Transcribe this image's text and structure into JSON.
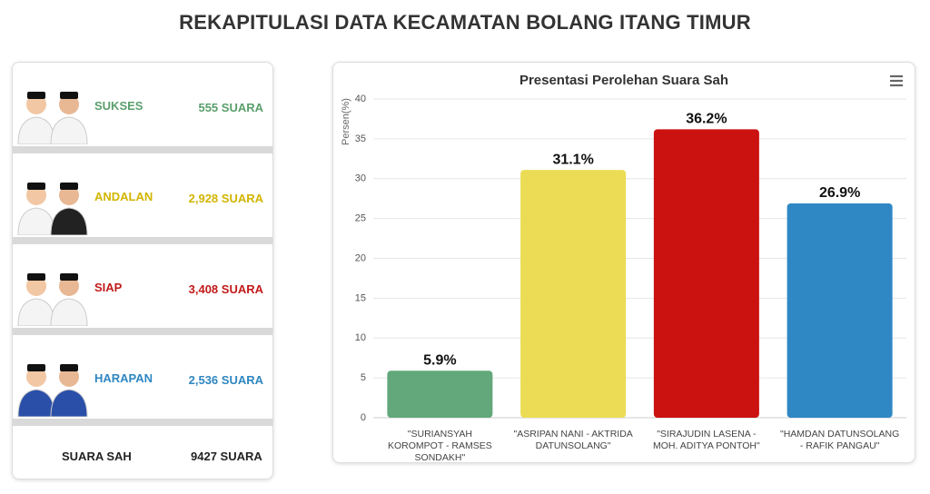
{
  "header": {
    "title": "REKAPITULASI DATA KECAMATAN BOLANG ITANG TIMUR"
  },
  "candidates": [
    {
      "name": "SUKSES",
      "votes": "555 SUARA",
      "color": "#5a9f6c"
    },
    {
      "name": "ANDALAN",
      "votes": "2,928 SUARA",
      "color": "#d2b500"
    },
    {
      "name": "SIAP",
      "votes": "3,408 SUARA",
      "color": "#c21a1a"
    },
    {
      "name": "HARAPAN",
      "votes": "2,536 SUARA",
      "color": "#2e86c1"
    }
  ],
  "total": {
    "label": "SUARA SAH",
    "votes": "9427 SUARA"
  },
  "chart_data": {
    "type": "bar",
    "title": "Presentasi Perolehan Suara Sah",
    "y_label": "Persen(%)",
    "categories": [
      "\"SURIANSYAH KOROMPOT - RAMSES SONDAKH\"",
      "\"ASRIPAN NANI - AKTRIDA DATUNSOLANG\"",
      "\"SIRAJUDIN LASENA - MOH. ADITYA PONTOH\"",
      "\"HAMDAN DATUNSOLANG - RAFIK PANGAU\""
    ],
    "values": [
      5.9,
      31.1,
      36.2,
      26.9
    ],
    "value_labels": [
      "5.9%",
      "31.1%",
      "36.2%",
      "26.9%"
    ],
    "colors": [
      "#62a87a",
      "#ecdc55",
      "#cc1111",
      "#2f88c3"
    ],
    "ylim": [
      0,
      40
    ],
    "yticks": [
      0,
      5,
      10,
      15,
      20,
      25,
      30,
      35,
      40
    ],
    "grid": true
  }
}
